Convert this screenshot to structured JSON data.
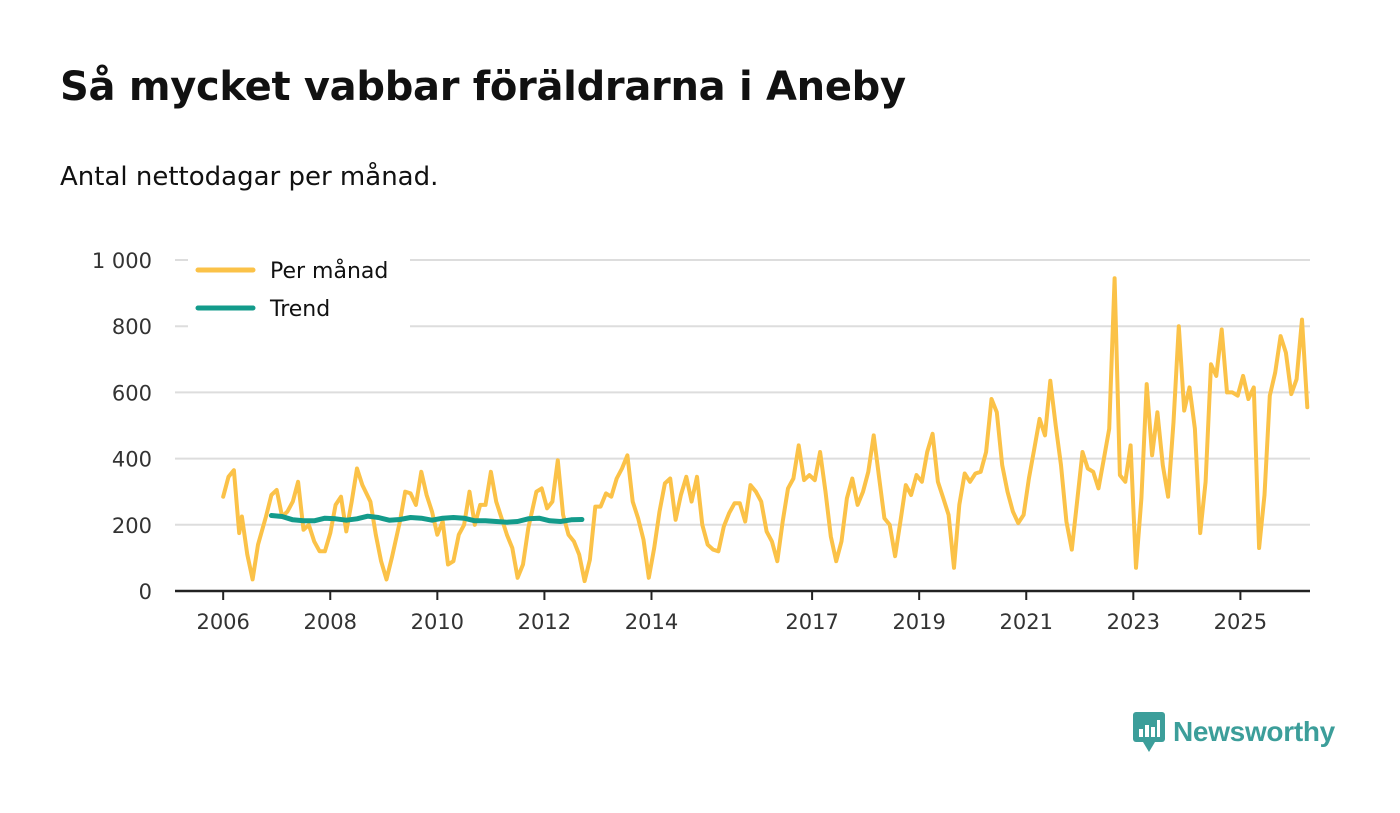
{
  "title": "Så mycket vabbar föräldrarna i Aneby",
  "subtitle": "Antal nettodagar per månad.",
  "brand": {
    "name": "Newsworthy",
    "icon": "newsworthy-logo-icon"
  },
  "colors": {
    "per_month": "#fbc248",
    "trend": "#139b8b",
    "grid": "#dddddd",
    "axis": "#222222",
    "brand": "#3c9e9a"
  },
  "chart_data": {
    "type": "line",
    "title": "Så mycket vabbar föräldrarna i Aneby",
    "subtitle": "Antal nettodagar per månad.",
    "xlabel": "",
    "ylabel": "",
    "ylim": [
      0,
      1000
    ],
    "xlim": [
      2005.1,
      2026.3
    ],
    "grid": true,
    "legend_position": "top-left",
    "yticks": [
      {
        "value": 0,
        "label": "0"
      },
      {
        "value": 200,
        "label": "200"
      },
      {
        "value": 400,
        "label": "400"
      },
      {
        "value": 600,
        "label": "600"
      },
      {
        "value": 800,
        "label": "800"
      },
      {
        "value": 1000,
        "label": "1 000"
      }
    ],
    "xticks": [
      {
        "value": 2006,
        "label": "2006"
      },
      {
        "value": 2008,
        "label": "2008"
      },
      {
        "value": 2010,
        "label": "2010"
      },
      {
        "value": 2012,
        "label": "2012"
      },
      {
        "value": 2014,
        "label": "2014"
      },
      {
        "value": 2017,
        "label": "2017"
      },
      {
        "value": 2019,
        "label": "2019"
      },
      {
        "value": 2021,
        "label": "2021"
      },
      {
        "value": 2023,
        "label": "2023"
      },
      {
        "value": 2025,
        "label": "2025"
      }
    ],
    "series": [
      {
        "name": "Per månad",
        "color": "#fbc248",
        "points": [
          [
            2006.0,
            285
          ],
          [
            2006.1,
            345
          ],
          [
            2006.2,
            365
          ],
          [
            2006.3,
            175
          ],
          [
            2006.35,
            225
          ],
          [
            2006.45,
            110
          ],
          [
            2006.55,
            35
          ],
          [
            2006.65,
            140
          ],
          [
            2006.8,
            225
          ],
          [
            2006.9,
            290
          ],
          [
            2007.0,
            305
          ],
          [
            2007.1,
            225
          ],
          [
            2007.2,
            240
          ],
          [
            2007.3,
            270
          ],
          [
            2007.4,
            330
          ],
          [
            2007.5,
            185
          ],
          [
            2007.6,
            200
          ],
          [
            2007.7,
            150
          ],
          [
            2007.8,
            120
          ],
          [
            2007.9,
            120
          ],
          [
            2008.0,
            175
          ],
          [
            2008.1,
            260
          ],
          [
            2008.2,
            285
          ],
          [
            2008.3,
            180
          ],
          [
            2008.4,
            270
          ],
          [
            2008.5,
            370
          ],
          [
            2008.6,
            320
          ],
          [
            2008.75,
            270
          ],
          [
            2008.85,
            170
          ],
          [
            2008.95,
            90
          ],
          [
            2009.05,
            35
          ],
          [
            2009.15,
            100
          ],
          [
            2009.3,
            210
          ],
          [
            2009.4,
            300
          ],
          [
            2009.5,
            295
          ],
          [
            2009.6,
            260
          ],
          [
            2009.7,
            360
          ],
          [
            2009.8,
            290
          ],
          [
            2009.9,
            240
          ],
          [
            2010.0,
            170
          ],
          [
            2010.1,
            210
          ],
          [
            2010.2,
            80
          ],
          [
            2010.3,
            90
          ],
          [
            2010.4,
            170
          ],
          [
            2010.5,
            200
          ],
          [
            2010.6,
            300
          ],
          [
            2010.7,
            200
          ],
          [
            2010.8,
            260
          ],
          [
            2010.9,
            260
          ],
          [
            2011.0,
            360
          ],
          [
            2011.1,
            270
          ],
          [
            2011.2,
            220
          ],
          [
            2011.3,
            170
          ],
          [
            2011.4,
            130
          ],
          [
            2011.5,
            40
          ],
          [
            2011.6,
            80
          ],
          [
            2011.7,
            190
          ],
          [
            2011.85,
            300
          ],
          [
            2011.95,
            310
          ],
          [
            2012.05,
            250
          ],
          [
            2012.15,
            270
          ],
          [
            2012.25,
            395
          ],
          [
            2012.35,
            230
          ],
          [
            2012.45,
            170
          ],
          [
            2012.55,
            150
          ],
          [
            2012.65,
            110
          ],
          [
            2012.75,
            30
          ],
          [
            2012.85,
            95
          ],
          [
            2012.95,
            255
          ],
          [
            2013.05,
            255
          ],
          [
            2013.15,
            295
          ],
          [
            2013.25,
            285
          ],
          [
            2013.35,
            340
          ],
          [
            2013.45,
            370
          ],
          [
            2013.55,
            410
          ],
          [
            2013.65,
            270
          ],
          [
            2013.75,
            220
          ],
          [
            2013.85,
            155
          ],
          [
            2013.95,
            40
          ],
          [
            2014.05,
            130
          ],
          [
            2014.15,
            240
          ],
          [
            2014.25,
            325
          ],
          [
            2014.35,
            340
          ],
          [
            2014.45,
            215
          ],
          [
            2014.55,
            290
          ],
          [
            2014.65,
            345
          ],
          [
            2014.75,
            270
          ],
          [
            2014.85,
            345
          ],
          [
            2014.95,
            200
          ],
          [
            2015.05,
            140
          ],
          [
            2015.15,
            125
          ],
          [
            2015.25,
            120
          ],
          [
            2015.35,
            195
          ],
          [
            2015.45,
            235
          ],
          [
            2015.55,
            265
          ],
          [
            2015.65,
            265
          ],
          [
            2015.75,
            210
          ],
          [
            2015.85,
            320
          ],
          [
            2015.95,
            300
          ],
          [
            2016.05,
            270
          ],
          [
            2016.15,
            180
          ],
          [
            2016.25,
            150
          ],
          [
            2016.35,
            90
          ],
          [
            2016.45,
            210
          ],
          [
            2016.55,
            310
          ],
          [
            2016.65,
            340
          ],
          [
            2016.75,
            440
          ],
          [
            2016.85,
            335
          ],
          [
            2016.95,
            350
          ],
          [
            2017.05,
            335
          ],
          [
            2017.15,
            420
          ],
          [
            2017.25,
            300
          ],
          [
            2017.35,
            165
          ],
          [
            2017.45,
            90
          ],
          [
            2017.55,
            150
          ],
          [
            2017.65,
            280
          ],
          [
            2017.75,
            340
          ],
          [
            2017.85,
            260
          ],
          [
            2017.95,
            300
          ],
          [
            2018.05,
            360
          ],
          [
            2018.15,
            470
          ],
          [
            2018.25,
            345
          ],
          [
            2018.35,
            220
          ],
          [
            2018.45,
            200
          ],
          [
            2018.55,
            105
          ],
          [
            2018.65,
            210
          ],
          [
            2018.75,
            320
          ],
          [
            2018.85,
            290
          ],
          [
            2018.95,
            350
          ],
          [
            2019.05,
            330
          ],
          [
            2019.15,
            420
          ],
          [
            2019.25,
            475
          ],
          [
            2019.35,
            330
          ],
          [
            2019.45,
            280
          ],
          [
            2019.55,
            230
          ],
          [
            2019.65,
            70
          ],
          [
            2019.75,
            260
          ],
          [
            2019.85,
            355
          ],
          [
            2019.95,
            330
          ],
          [
            2020.05,
            355
          ],
          [
            2020.15,
            360
          ],
          [
            2020.25,
            420
          ],
          [
            2020.35,
            580
          ],
          [
            2020.45,
            540
          ],
          [
            2020.55,
            380
          ],
          [
            2020.65,
            300
          ],
          [
            2020.75,
            240
          ],
          [
            2020.85,
            205
          ],
          [
            2020.95,
            230
          ],
          [
            2021.05,
            340
          ],
          [
            2021.15,
            430
          ],
          [
            2021.25,
            520
          ],
          [
            2021.35,
            470
          ],
          [
            2021.45,
            635
          ],
          [
            2021.55,
            500
          ],
          [
            2021.65,
            380
          ],
          [
            2021.75,
            210
          ],
          [
            2021.85,
            125
          ],
          [
            2021.95,
            270
          ],
          [
            2022.05,
            420
          ],
          [
            2022.15,
            370
          ],
          [
            2022.25,
            360
          ],
          [
            2022.35,
            310
          ],
          [
            2022.45,
            400
          ],
          [
            2022.55,
            490
          ],
          [
            2022.65,
            945
          ],
          [
            2022.75,
            350
          ],
          [
            2022.85,
            330
          ],
          [
            2022.95,
            440
          ],
          [
            2023.05,
            70
          ],
          [
            2023.15,
            280
          ],
          [
            2023.25,
            625
          ],
          [
            2023.35,
            410
          ],
          [
            2023.45,
            540
          ],
          [
            2023.55,
            380
          ],
          [
            2023.65,
            285
          ],
          [
            2023.75,
            510
          ],
          [
            2023.85,
            800
          ],
          [
            2023.95,
            545
          ],
          [
            2024.05,
            615
          ],
          [
            2024.15,
            490
          ],
          [
            2024.25,
            175
          ],
          [
            2024.35,
            330
          ],
          [
            2024.45,
            685
          ],
          [
            2024.55,
            650
          ],
          [
            2024.65,
            790
          ],
          [
            2024.75,
            600
          ],
          [
            2024.85,
            600
          ],
          [
            2024.95,
            590
          ],
          [
            2025.05,
            650
          ],
          [
            2025.15,
            580
          ],
          [
            2025.25,
            615
          ],
          [
            2025.35,
            130
          ],
          [
            2025.45,
            290
          ],
          [
            2025.55,
            590
          ],
          [
            2025.65,
            660
          ],
          [
            2025.75,
            770
          ],
          [
            2025.85,
            720
          ],
          [
            2025.95,
            595
          ],
          [
            2026.05,
            640
          ],
          [
            2026.15,
            820
          ],
          [
            2026.25,
            555
          ]
        ]
      },
      {
        "name": "Trend",
        "color": "#139b8b",
        "points": [
          [
            2006.9,
            228
          ],
          [
            2007.1,
            225
          ],
          [
            2007.3,
            215
          ],
          [
            2007.5,
            212
          ],
          [
            2007.7,
            212
          ],
          [
            2007.9,
            220
          ],
          [
            2008.1,
            218
          ],
          [
            2008.3,
            214
          ],
          [
            2008.5,
            218
          ],
          [
            2008.7,
            226
          ],
          [
            2008.9,
            222
          ],
          [
            2009.1,
            214
          ],
          [
            2009.3,
            216
          ],
          [
            2009.5,
            222
          ],
          [
            2009.7,
            220
          ],
          [
            2009.9,
            214
          ],
          [
            2010.1,
            220
          ],
          [
            2010.3,
            222
          ],
          [
            2010.5,
            220
          ],
          [
            2010.7,
            212
          ],
          [
            2010.9,
            212
          ],
          [
            2011.1,
            210
          ],
          [
            2011.3,
            208
          ],
          [
            2011.5,
            210
          ],
          [
            2011.7,
            218
          ],
          [
            2011.9,
            220
          ],
          [
            2012.1,
            212
          ],
          [
            2012.3,
            210
          ],
          [
            2012.5,
            215
          ],
          [
            2012.7,
            216
          ]
        ]
      }
    ]
  }
}
